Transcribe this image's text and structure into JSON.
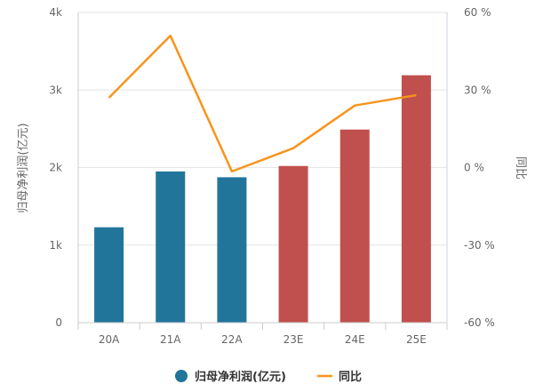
{
  "chart_data": {
    "type": "bar",
    "categories": [
      "20A",
      "21A",
      "22A",
      "23E",
      "24E",
      "25E"
    ],
    "series": [
      {
        "name": "归母净利润(亿元)",
        "type": "bar",
        "axis": "left",
        "values": [
          1230,
          1950,
          1875,
          2020,
          2490,
          3190
        ],
        "colors": [
          "#21759b",
          "#21759b",
          "#21759b",
          "#c0504d",
          "#c0504d",
          "#c0504d"
        ]
      },
      {
        "name": "同比",
        "type": "line",
        "axis": "right",
        "color": "#f7941d",
        "values": [
          27,
          51,
          -1.5,
          7.5,
          24,
          28
        ]
      }
    ],
    "left_axis": {
      "title": "归母净利润(亿元)",
      "ticks": [
        "0",
        "1k",
        "2k",
        "3k",
        "4k"
      ],
      "tick_values": [
        0,
        1000,
        2000,
        3000,
        4000
      ],
      "ylim": [
        0,
        4000
      ]
    },
    "right_axis": {
      "title": "同比",
      "ticks": [
        "-60 %",
        "-30 %",
        "0 %",
        "30 %",
        "60 %"
      ],
      "tick_values": [
        -60,
        -30,
        0,
        30,
        60
      ],
      "ylim": [
        -60,
        60
      ]
    },
    "grid": true,
    "legend_position": "bottom"
  }
}
